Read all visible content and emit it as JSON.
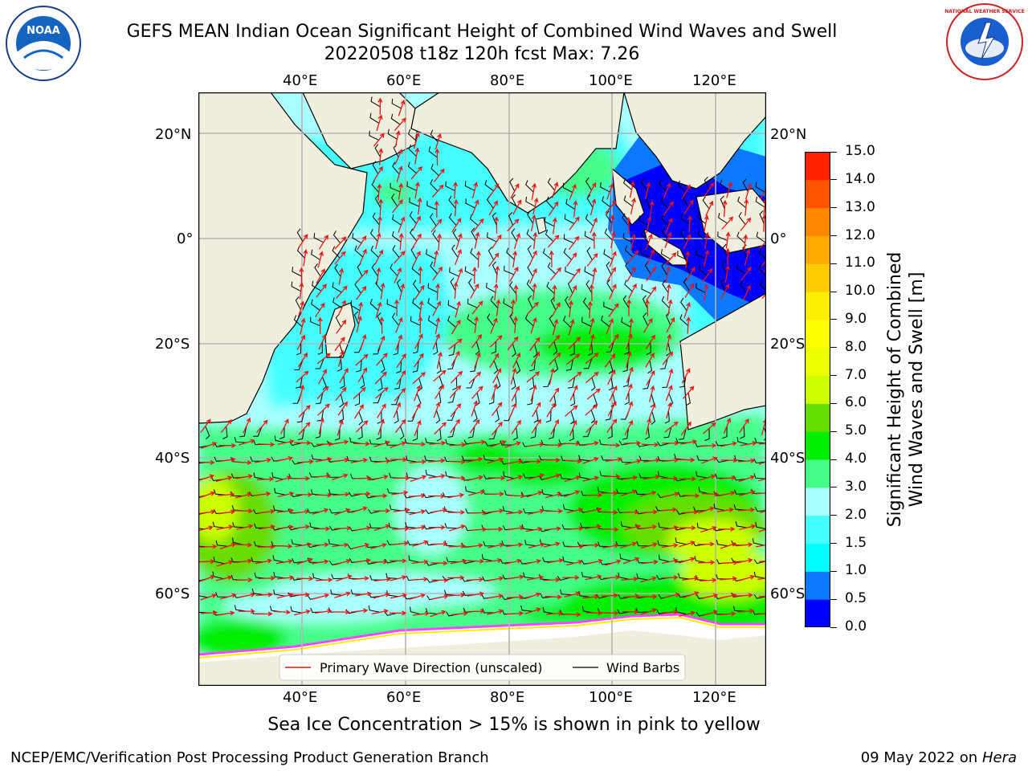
{
  "title": {
    "line1": "GEFS MEAN Indian Ocean Significant Height of Combined Wind Waves and Swell",
    "line2": "20220508 t18z 120h fcst   Max: 7.26"
  },
  "map": {
    "lon_labels": [
      "40°E",
      "60°E",
      "80°E",
      "100°E",
      "120°E"
    ],
    "lat_labels": [
      "20°N",
      "0°",
      "20°S",
      "40°S",
      "60°S"
    ],
    "colors": {
      "land": "#f0eedc",
      "sea_ice": "#ffffff",
      "grid": "#b4b4b4",
      "wave_direction": "#ee1111",
      "wind_barb": "#000000"
    },
    "legend": {
      "wave_label": "Primary Wave Direction (unscaled)",
      "barb_label": "Wind Barbs"
    }
  },
  "colorbar": {
    "title_line1": "Significant Height of Combined",
    "title_line2": "Wind Waves and Swell [m]",
    "ticks": [
      "0.0",
      "0.5",
      "1.0",
      "1.5",
      "2.0",
      "3.0",
      "4.0",
      "5.0",
      "6.0",
      "7.0",
      "8.0",
      "9.0",
      "10.0",
      "11.0",
      "12.0",
      "13.0",
      "14.0",
      "15.0"
    ],
    "colors": [
      "#0000ff",
      "#0a78ff",
      "#00ffff",
      "#44ffff",
      "#aaffff",
      "#44ff88",
      "#00ee00",
      "#66dd00",
      "#ccff00",
      "#eeff00",
      "#ffff00",
      "#ffee00",
      "#ffcc00",
      "#ffaa00",
      "#ff8800",
      "#ff5500",
      "#ff2200"
    ]
  },
  "logos": {
    "noaa_text": "NOAA",
    "nws_text": "NATIONAL WEATHER SERVICE"
  },
  "note": "Sea Ice Concentration > 15% is shown in pink to yellow",
  "footer": {
    "left": "NCEP/EMC/Verification Post Processing Product Generation Branch",
    "date": "09 May 2022 on",
    "host": "Hera"
  }
}
